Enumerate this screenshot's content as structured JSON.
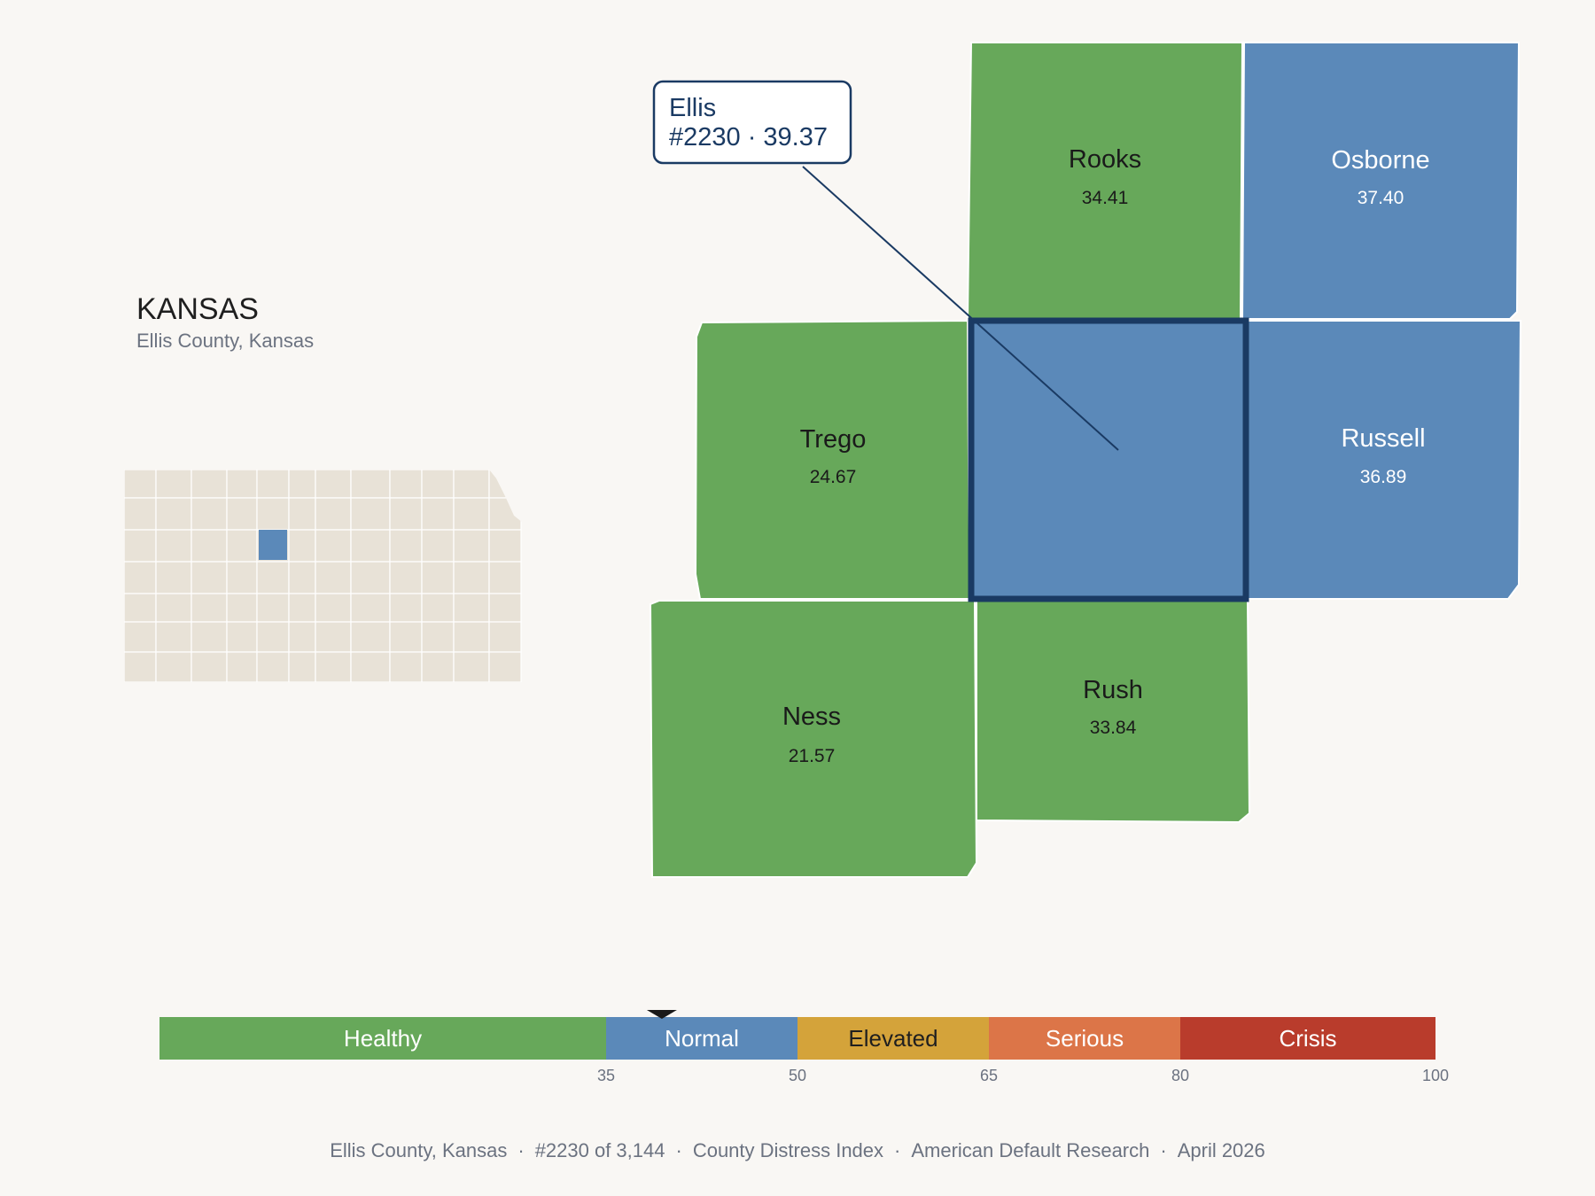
{
  "state": {
    "name": "KANSAS",
    "subtitle": "Ellis County, Kansas"
  },
  "colors": {
    "background": "#f9f7f4",
    "healthy": "#67a85a",
    "normal": "#5b89b9",
    "elevated": "#d4a33a",
    "serious": "#dc7548",
    "crisis": "#b93c2c",
    "highlight_border": "#1a3a63",
    "minimap_fill": "#e8e2d7"
  },
  "highlighted_county": {
    "name": "Ellis",
    "callout_line1": "Ellis",
    "callout_line2": "#2230 · 39.37",
    "score": 39.37,
    "rank": 2230
  },
  "counties": [
    {
      "name": "Rooks",
      "score": "34.41",
      "category": "healthy"
    },
    {
      "name": "Osborne",
      "score": "37.40",
      "category": "normal"
    },
    {
      "name": "Trego",
      "score": "24.67",
      "category": "healthy"
    },
    {
      "name": "Ellis",
      "score": "39.37",
      "category": "normal"
    },
    {
      "name": "Russell",
      "score": "36.89",
      "category": "normal"
    },
    {
      "name": "Ness",
      "score": "21.57",
      "category": "healthy"
    },
    {
      "name": "Rush",
      "score": "33.84",
      "category": "healthy"
    }
  ],
  "legend": {
    "min": 0,
    "max": 100,
    "marker_value": 39.37,
    "segments": [
      {
        "label": "Healthy",
        "from": 0,
        "to": 35,
        "color": "#67a85a",
        "text_color": "#ffffff"
      },
      {
        "label": "Normal",
        "from": 35,
        "to": 50,
        "color": "#5b89b9",
        "text_color": "#ffffff"
      },
      {
        "label": "Elevated",
        "from": 50,
        "to": 65,
        "color": "#d4a33a",
        "text_color": "#1f1f1f"
      },
      {
        "label": "Serious",
        "from": 65,
        "to": 80,
        "color": "#dc7548",
        "text_color": "#ffffff"
      },
      {
        "label": "Crisis",
        "from": 80,
        "to": 100,
        "color": "#b93c2c",
        "text_color": "#ffffff"
      }
    ],
    "ticks": [
      "35",
      "50",
      "65",
      "80",
      "100"
    ]
  },
  "footer": {
    "location": "Ellis County, Kansas",
    "rank": "#2230 of 3,144",
    "index": "County Distress Index",
    "source": "American Default Research",
    "date": "April 2026"
  }
}
